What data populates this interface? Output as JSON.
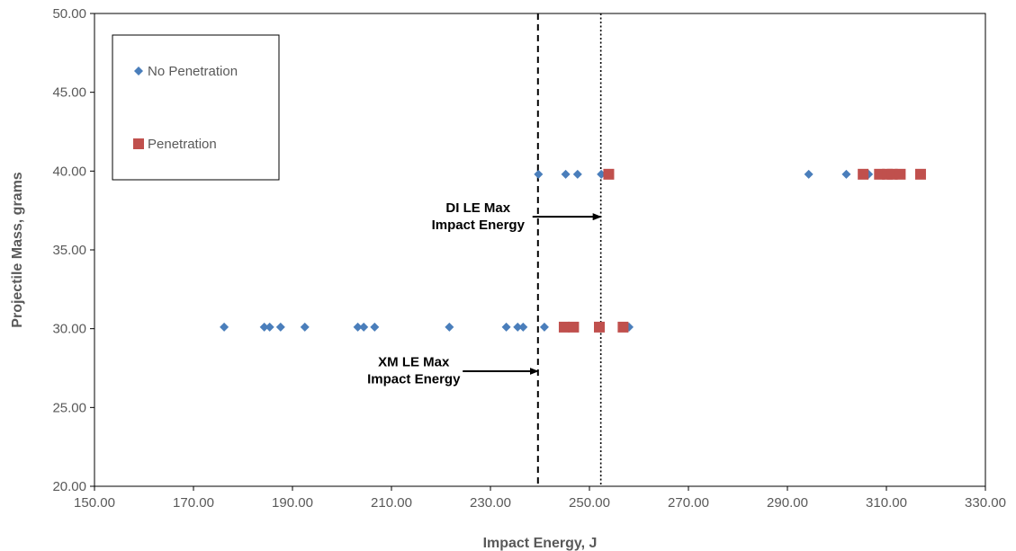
{
  "chart_data": {
    "type": "scatter",
    "xlabel": "Impact Energy, J",
    "ylabel": "Projectile Mass, grams",
    "xlim": [
      150,
      330
    ],
    "ylim": [
      20,
      50
    ],
    "x_ticks": [
      "150.00",
      "170.00",
      "190.00",
      "210.00",
      "230.00",
      "250.00",
      "270.00",
      "290.00",
      "310.00",
      "330.00"
    ],
    "y_ticks": [
      "20.00",
      "25.00",
      "30.00",
      "35.00",
      "40.00",
      "45.00",
      "50.00"
    ],
    "legend_position": "top-left",
    "series": [
      {
        "name": "No Penetration",
        "marker": "diamond",
        "color": "#4a7ebb",
        "points": [
          [
            176.2,
            30.1
          ],
          [
            184.3,
            30.1
          ],
          [
            185.4,
            30.1
          ],
          [
            187.6,
            30.1
          ],
          [
            192.5,
            30.1
          ],
          [
            203.2,
            30.1
          ],
          [
            204.4,
            30.1
          ],
          [
            206.6,
            30.1
          ],
          [
            221.7,
            30.1
          ],
          [
            233.2,
            30.1
          ],
          [
            235.5,
            30.1
          ],
          [
            236.6,
            30.1
          ],
          [
            240.9,
            30.1
          ],
          [
            258.0,
            30.1
          ],
          [
            239.7,
            39.8
          ],
          [
            245.2,
            39.8
          ],
          [
            247.6,
            39.8
          ],
          [
            252.4,
            39.8
          ],
          [
            294.3,
            39.8
          ],
          [
            301.9,
            39.8
          ],
          [
            306.4,
            39.8
          ]
        ]
      },
      {
        "name": "Penetration",
        "marker": "square",
        "color": "#c0504d",
        "points": [
          [
            244.9,
            30.1
          ],
          [
            246.8,
            30.1
          ],
          [
            252.0,
            30.1
          ],
          [
            256.8,
            30.1
          ],
          [
            253.9,
            39.8
          ],
          [
            305.3,
            39.8
          ],
          [
            308.6,
            39.8
          ],
          [
            310.2,
            39.8
          ],
          [
            311.2,
            39.8
          ],
          [
            312.8,
            39.8
          ],
          [
            316.9,
            39.8
          ]
        ]
      }
    ],
    "reference_lines": [
      {
        "x": 239.6,
        "style": "dashed",
        "label": [
          "XM LE Max",
          "Impact Energy"
        ]
      },
      {
        "x": 252.3,
        "style": "dotted",
        "label": [
          "DI LE Max",
          "Impact Energy"
        ]
      }
    ],
    "annotations": [
      {
        "lines": [
          "DI LE Max",
          "Impact Energy"
        ],
        "arrow_from": [
          238.5,
          37.1
        ],
        "arrow_to": [
          252.3,
          37.1
        ],
        "text_anchor": [
          227.5,
          37.4
        ]
      },
      {
        "lines": [
          "XM LE Max",
          "Impact Energy"
        ],
        "arrow_from": [
          224.4,
          27.3
        ],
        "arrow_to": [
          239.6,
          27.3
        ],
        "text_anchor": [
          214.5,
          27.6
        ]
      }
    ],
    "grid": false
  }
}
